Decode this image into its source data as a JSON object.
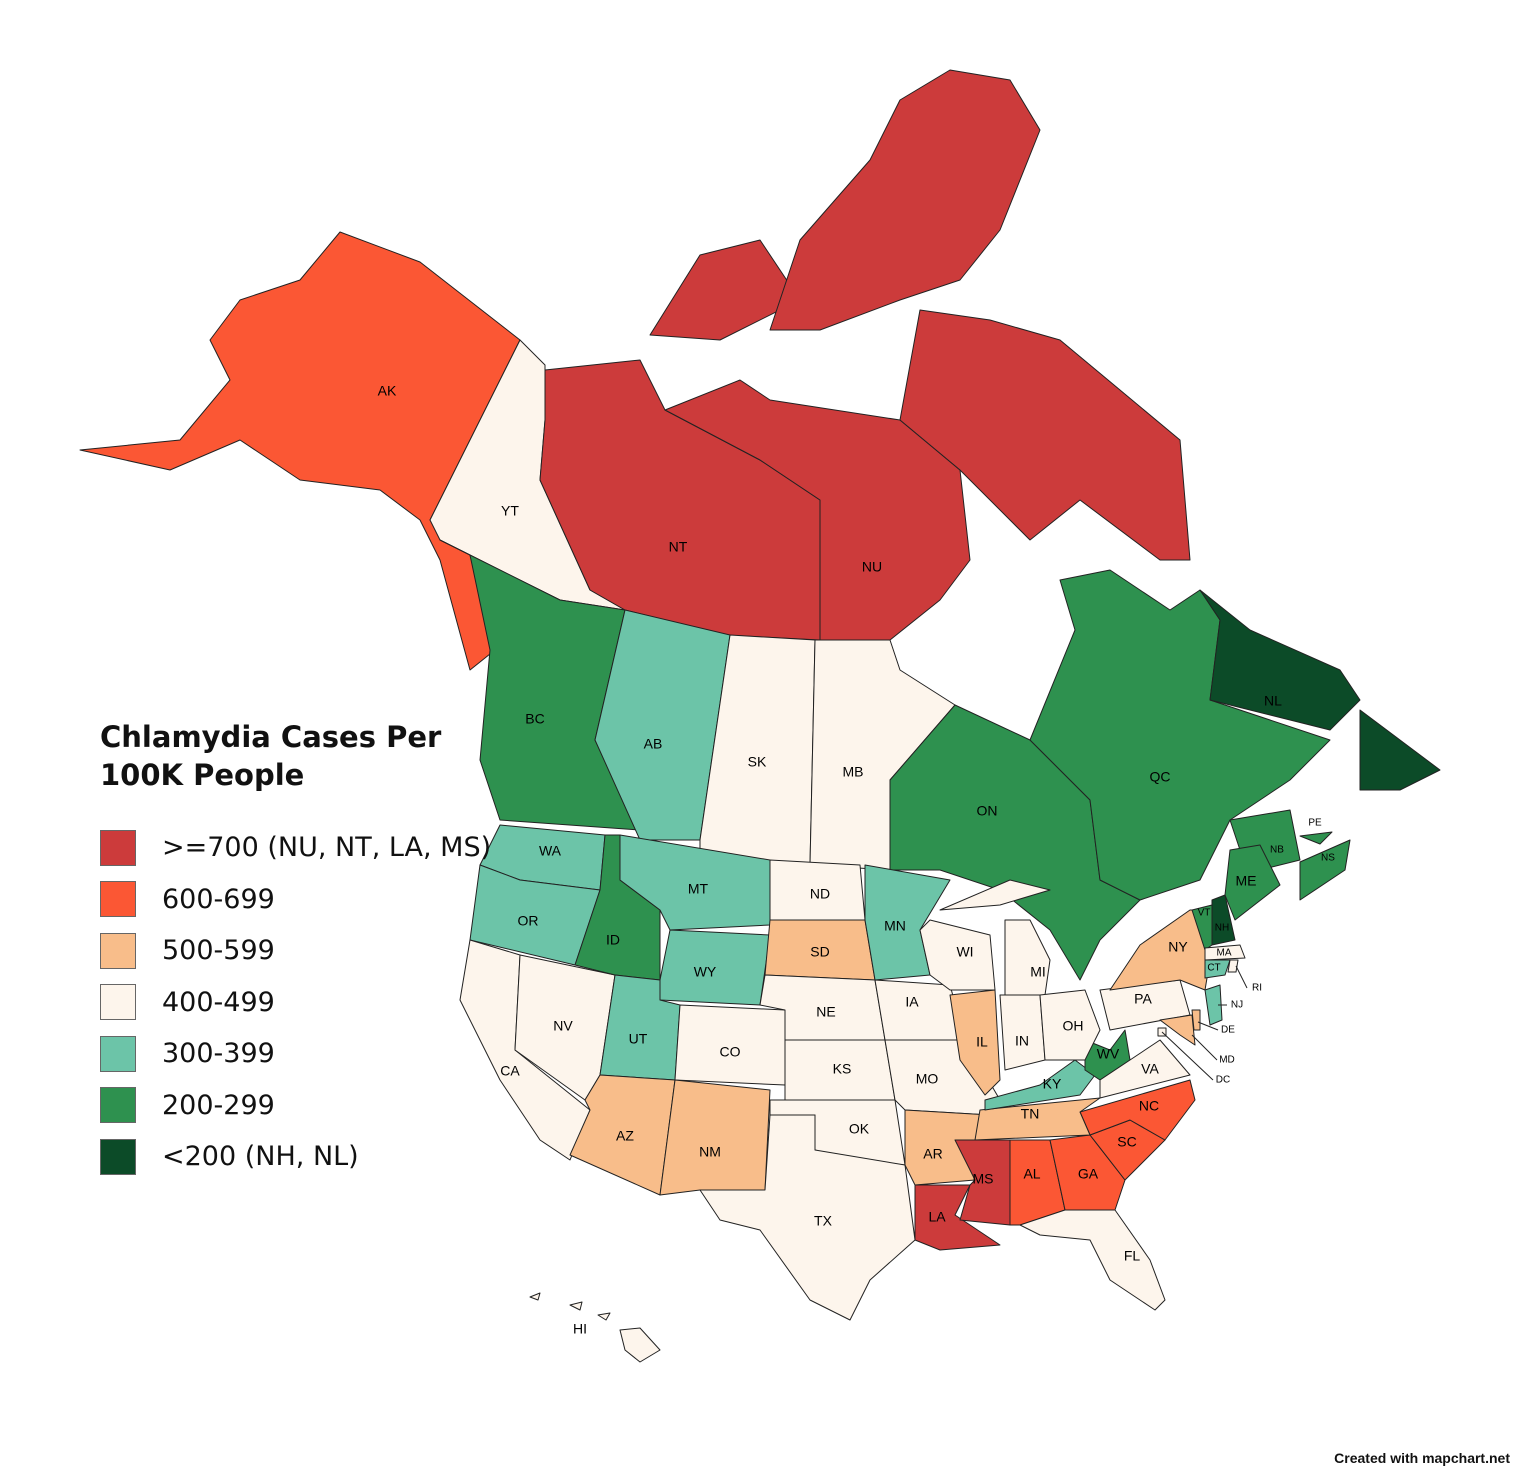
{
  "title": "Chlamydia Cases Per 100K People",
  "legend": [
    {
      "label": ">=700 (NU, NT, LA, MS)",
      "color": "#cc3b3b"
    },
    {
      "label": "600-699",
      "color": "#fb5734"
    },
    {
      "label": "500-599",
      "color": "#f8bd8a"
    },
    {
      "label": "400-499",
      "color": "#fdf5ec"
    },
    {
      "label": "300-399",
      "color": "#6cc4a8"
    },
    {
      "label": "200-299",
      "color": "#2e914f"
    },
    {
      "label": "<200 (NH, NL)",
      "color": "#0c4b28"
    }
  ],
  "regions": [
    {
      "code": "AK",
      "color": "#fb5734"
    },
    {
      "code": "YT",
      "color": "#fdf5ec"
    },
    {
      "code": "NT",
      "color": "#cc3b3b"
    },
    {
      "code": "NU",
      "color": "#cc3b3b"
    },
    {
      "code": "BC",
      "color": "#2e914f"
    },
    {
      "code": "AB",
      "color": "#6cc4a8"
    },
    {
      "code": "SK",
      "color": "#fdf5ec"
    },
    {
      "code": "MB",
      "color": "#fdf5ec"
    },
    {
      "code": "ON",
      "color": "#2e914f"
    },
    {
      "code": "QC",
      "color": "#2e914f"
    },
    {
      "code": "NL",
      "color": "#0c4b28"
    },
    {
      "code": "NB",
      "color": "#2e914f"
    },
    {
      "code": "NS",
      "color": "#2e914f"
    },
    {
      "code": "PE",
      "color": "#2e914f"
    },
    {
      "code": "WA",
      "color": "#6cc4a8"
    },
    {
      "code": "OR",
      "color": "#6cc4a8"
    },
    {
      "code": "CA",
      "color": "#fdf5ec"
    },
    {
      "code": "NV",
      "color": "#fdf5ec"
    },
    {
      "code": "ID",
      "color": "#2e914f"
    },
    {
      "code": "MT",
      "color": "#6cc4a8"
    },
    {
      "code": "WY",
      "color": "#6cc4a8"
    },
    {
      "code": "UT",
      "color": "#6cc4a8"
    },
    {
      "code": "CO",
      "color": "#fdf5ec"
    },
    {
      "code": "AZ",
      "color": "#f8bd8a"
    },
    {
      "code": "NM",
      "color": "#f8bd8a"
    },
    {
      "code": "ND",
      "color": "#fdf5ec"
    },
    {
      "code": "SD",
      "color": "#f8bd8a"
    },
    {
      "code": "NE",
      "color": "#fdf5ec"
    },
    {
      "code": "KS",
      "color": "#fdf5ec"
    },
    {
      "code": "OK",
      "color": "#fdf5ec"
    },
    {
      "code": "TX",
      "color": "#fdf5ec"
    },
    {
      "code": "MN",
      "color": "#6cc4a8"
    },
    {
      "code": "IA",
      "color": "#fdf5ec"
    },
    {
      "code": "MO",
      "color": "#fdf5ec"
    },
    {
      "code": "AR",
      "color": "#f8bd8a"
    },
    {
      "code": "LA",
      "color": "#cc3b3b"
    },
    {
      "code": "MS",
      "color": "#cc3b3b"
    },
    {
      "code": "AL",
      "color": "#fb5734"
    },
    {
      "code": "GA",
      "color": "#fb5734"
    },
    {
      "code": "FL",
      "color": "#fdf5ec"
    },
    {
      "code": "SC",
      "color": "#fb5734"
    },
    {
      "code": "NC",
      "color": "#fb5734"
    },
    {
      "code": "TN",
      "color": "#f8bd8a"
    },
    {
      "code": "KY",
      "color": "#6cc4a8"
    },
    {
      "code": "WV",
      "color": "#2e914f"
    },
    {
      "code": "VA",
      "color": "#fdf5ec"
    },
    {
      "code": "IL",
      "color": "#f8bd8a"
    },
    {
      "code": "WI",
      "color": "#fdf5ec"
    },
    {
      "code": "MI",
      "color": "#fdf5ec"
    },
    {
      "code": "IN",
      "color": "#fdf5ec"
    },
    {
      "code": "OH",
      "color": "#fdf5ec"
    },
    {
      "code": "PA",
      "color": "#fdf5ec"
    },
    {
      "code": "NY",
      "color": "#f8bd8a"
    },
    {
      "code": "VT",
      "color": "#2e914f"
    },
    {
      "code": "NH",
      "color": "#0c4b28"
    },
    {
      "code": "ME",
      "color": "#2e914f"
    },
    {
      "code": "MA",
      "color": "#fdf5ec"
    },
    {
      "code": "CT",
      "color": "#6cc4a8"
    },
    {
      "code": "RI",
      "color": "#fdf5ec"
    },
    {
      "code": "NJ",
      "color": "#6cc4a8"
    },
    {
      "code": "DE",
      "color": "#f8bd8a"
    },
    {
      "code": "MD",
      "color": "#f8bd8a"
    },
    {
      "code": "DC",
      "color": "#fdf5ec"
    },
    {
      "code": "HI",
      "color": "#fdf5ec"
    }
  ],
  "credit": "Created with mapchart.net"
}
